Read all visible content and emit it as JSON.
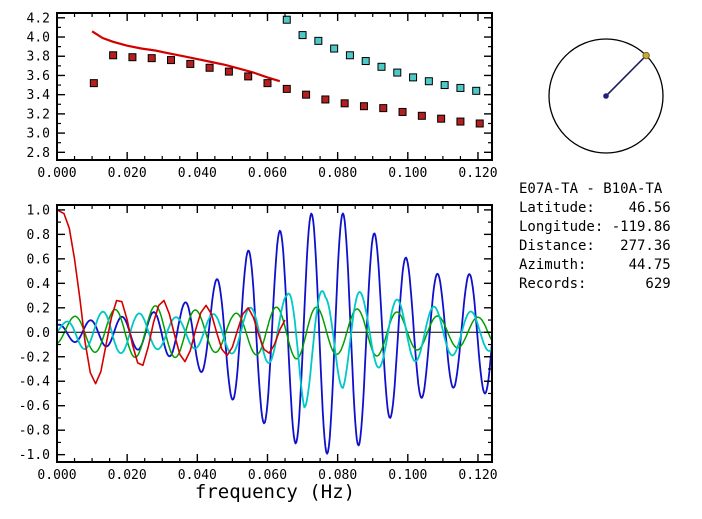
{
  "window": {
    "background": "#ffffff"
  },
  "colors": {
    "axis": "#000000",
    "red_line": "#d40000",
    "red_marker": "#b42020",
    "cyan_marker": "#50c8c8",
    "blue_wave": "#1010cc",
    "cyan_wave": "#00c8c8",
    "green_wave": "#00a000",
    "red_wave": "#d40000",
    "dial_line": "#202060",
    "dial_center": "#202080",
    "dial_marker": "#c8a83c"
  },
  "station_info": {
    "lines": [
      "E07A-TA - B10A-TA",
      "Latitude:    46.56",
      "Longitude: -119.86",
      "Distance:   277.36",
      "Azimuth:     44.75",
      "Records:       629"
    ]
  },
  "dial": {
    "azimuth_deg": 44.75
  },
  "chart_data": [
    {
      "type": "scatter",
      "title": "",
      "xlabel": "",
      "ylabel": "",
      "xlim": [
        0,
        0.124
      ],
      "ylim": [
        2.72,
        4.25
      ],
      "minor_x": 0.005,
      "minor_y": 0.1,
      "xticks": [
        {
          "v": 0.0,
          "label": "0.000"
        },
        {
          "v": 0.02,
          "label": "0.020"
        },
        {
          "v": 0.04,
          "label": "0.040"
        },
        {
          "v": 0.06,
          "label": "0.060"
        },
        {
          "v": 0.08,
          "label": "0.080"
        },
        {
          "v": 0.1,
          "label": "0.100"
        },
        {
          "v": 0.12,
          "label": "0.120"
        }
      ],
      "yticks": [
        {
          "v": 2.8,
          "label": "2.8"
        },
        {
          "v": 3.0,
          "label": "3.0"
        },
        {
          "v": 3.2,
          "label": "3.2"
        },
        {
          "v": 3.4,
          "label": "3.4"
        },
        {
          "v": 3.6,
          "label": "3.6"
        },
        {
          "v": 3.8,
          "label": "3.8"
        },
        {
          "v": 4.0,
          "label": "4.0"
        },
        {
          "v": 4.2,
          "label": "4.2"
        }
      ],
      "series": [
        {
          "name": "red-dispersion-line",
          "type": "line",
          "color": "#d40000",
          "width": 2.2,
          "points": [
            [
              0.01,
              4.06
            ],
            [
              0.013,
              3.99
            ],
            [
              0.016,
              3.95
            ],
            [
              0.02,
              3.91
            ],
            [
              0.024,
              3.88
            ],
            [
              0.028,
              3.86
            ],
            [
              0.032,
              3.83
            ],
            [
              0.036,
              3.8
            ],
            [
              0.04,
              3.77
            ],
            [
              0.044,
              3.74
            ],
            [
              0.048,
              3.71
            ],
            [
              0.052,
              3.67
            ],
            [
              0.056,
              3.63
            ],
            [
              0.06,
              3.58
            ],
            [
              0.0635,
              3.54
            ]
          ]
        },
        {
          "name": "red-dispersion-points",
          "type": "scatter",
          "marker": "square",
          "color": "#b42020",
          "points": [
            [
              0.0105,
              3.52
            ],
            [
              0.016,
              3.81
            ],
            [
              0.0215,
              3.79
            ],
            [
              0.027,
              3.78
            ],
            [
              0.0325,
              3.76
            ],
            [
              0.038,
              3.72
            ],
            [
              0.0435,
              3.68
            ],
            [
              0.049,
              3.64
            ],
            [
              0.0545,
              3.59
            ],
            [
              0.06,
              3.52
            ],
            [
              0.0655,
              3.46
            ],
            [
              0.071,
              3.4
            ],
            [
              0.0765,
              3.35
            ],
            [
              0.082,
              3.31
            ],
            [
              0.0875,
              3.28
            ],
            [
              0.093,
              3.26
            ],
            [
              0.0985,
              3.22
            ],
            [
              0.104,
              3.18
            ],
            [
              0.1095,
              3.15
            ],
            [
              0.115,
              3.12
            ],
            [
              0.1205,
              3.1
            ]
          ]
        },
        {
          "name": "cyan-dispersion-points",
          "type": "scatter",
          "marker": "square",
          "color": "#50c8c8",
          "points": [
            [
              0.0655,
              4.18
            ],
            [
              0.07,
              4.02
            ],
            [
              0.0745,
              3.96
            ],
            [
              0.079,
              3.88
            ],
            [
              0.0835,
              3.81
            ],
            [
              0.088,
              3.75
            ],
            [
              0.0925,
              3.69
            ],
            [
              0.097,
              3.63
            ],
            [
              0.1015,
              3.58
            ],
            [
              0.106,
              3.54
            ],
            [
              0.1105,
              3.5
            ],
            [
              0.115,
              3.47
            ],
            [
              0.1195,
              3.44
            ]
          ]
        }
      ]
    },
    {
      "type": "line",
      "title": "",
      "xlabel": "frequency (Hz)",
      "ylabel": "",
      "xlim": [
        0,
        0.124
      ],
      "ylim": [
        -1.06,
        1.04
      ],
      "zero_line": true,
      "minor_x": 0.005,
      "minor_y": 0.1,
      "xticks": [
        {
          "v": 0.0,
          "label": "0.000"
        },
        {
          "v": 0.02,
          "label": "0.020"
        },
        {
          "v": 0.04,
          "label": "0.040"
        },
        {
          "v": 0.06,
          "label": "0.060"
        },
        {
          "v": 0.08,
          "label": "0.080"
        },
        {
          "v": 0.1,
          "label": "0.100"
        },
        {
          "v": 0.12,
          "label": "0.120"
        }
      ],
      "yticks": [
        {
          "v": -1.0,
          "label": "-1.0"
        },
        {
          "v": -0.8,
          "label": "-0.8"
        },
        {
          "v": -0.6,
          "label": "-0.6"
        },
        {
          "v": -0.4,
          "label": "-0.4"
        },
        {
          "v": -0.2,
          "label": "-0.2"
        },
        {
          "v": 0.0,
          "label": "0.0"
        },
        {
          "v": 0.2,
          "label": "0.2"
        },
        {
          "v": 0.4,
          "label": "0.4"
        },
        {
          "v": 0.6,
          "label": "0.6"
        },
        {
          "v": 0.8,
          "label": "0.8"
        },
        {
          "v": 1.0,
          "label": "1.0"
        }
      ],
      "series": [
        {
          "name": "blue-waveform",
          "type": "line",
          "color": "#1010cc",
          "width": 1.8,
          "synth": {
            "period": 0.009,
            "peak_x": 0.0545,
            "x_start": 0,
            "x_end": 0.124,
            "envelope": [
              [
                0,
                0.06
              ],
              [
                0.005,
                0.08
              ],
              [
                0.01,
                0.1
              ],
              [
                0.015,
                0.12
              ],
              [
                0.02,
                0.13
              ],
              [
                0.025,
                0.15
              ],
              [
                0.03,
                0.18
              ],
              [
                0.035,
                0.22
              ],
              [
                0.04,
                0.3
              ],
              [
                0.045,
                0.42
              ],
              [
                0.05,
                0.55
              ],
              [
                0.055,
                0.68
              ],
              [
                0.06,
                0.76
              ],
              [
                0.065,
                0.86
              ],
              [
                0.07,
                0.94
              ],
              [
                0.075,
                1.0
              ],
              [
                0.08,
                0.98
              ],
              [
                0.085,
                0.95
              ],
              [
                0.09,
                0.82
              ],
              [
                0.095,
                0.7
              ],
              [
                0.1,
                0.6
              ],
              [
                0.105,
                0.52
              ],
              [
                0.11,
                0.46
              ],
              [
                0.115,
                0.45
              ],
              [
                0.12,
                0.5
              ],
              [
                0.124,
                0.5
              ]
            ]
          }
        },
        {
          "name": "green-waveform",
          "type": "line",
          "color": "#00a000",
          "width": 1.5,
          "synth": {
            "period": 0.0115,
            "peak_x": 0.0165,
            "x_start": 0,
            "x_end": 0.124,
            "envelope": [
              [
                0,
                0.1
              ],
              [
                0.01,
                0.16
              ],
              [
                0.02,
                0.2
              ],
              [
                0.03,
                0.22
              ],
              [
                0.04,
                0.18
              ],
              [
                0.05,
                0.15
              ],
              [
                0.06,
                0.2
              ],
              [
                0.07,
                0.22
              ],
              [
                0.08,
                0.18
              ],
              [
                0.09,
                0.2
              ],
              [
                0.1,
                0.15
              ],
              [
                0.11,
                0.13
              ],
              [
                0.124,
                0.12
              ]
            ]
          }
        },
        {
          "name": "cyan-waveform",
          "type": "line",
          "color": "#00c8c8",
          "width": 1.8,
          "synth": {
            "period": 0.0105,
            "peak_x": 0.0655,
            "x_start": 0,
            "x_end": 0.124,
            "envelope": [
              [
                0,
                0.05
              ],
              [
                0.005,
                0.12
              ],
              [
                0.015,
                0.18
              ],
              [
                0.025,
                0.15
              ],
              [
                0.035,
                0.12
              ],
              [
                0.045,
                0.15
              ],
              [
                0.055,
                0.2
              ],
              [
                0.0655,
                0.3
              ],
              [
                0.0705,
                0.62
              ],
              [
                0.0765,
                0.3
              ],
              [
                0.0815,
                0.46
              ],
              [
                0.0875,
                0.3
              ],
              [
                0.095,
                0.28
              ],
              [
                0.105,
                0.22
              ],
              [
                0.115,
                0.18
              ],
              [
                0.124,
                0.15
              ]
            ]
          }
        },
        {
          "name": "red-waveform",
          "type": "line",
          "color": "#d40000",
          "width": 1.6,
          "points": [
            [
              0,
              1.0
            ],
            [
              0.002,
              0.97
            ],
            [
              0.0035,
              0.85
            ],
            [
              0.005,
              0.6
            ],
            [
              0.0065,
              0.28
            ],
            [
              0.008,
              -0.08
            ],
            [
              0.0095,
              -0.33
            ],
            [
              0.011,
              -0.42
            ],
            [
              0.0125,
              -0.32
            ],
            [
              0.014,
              -0.1
            ],
            [
              0.0155,
              0.12
            ],
            [
              0.017,
              0.26
            ],
            [
              0.0185,
              0.25
            ],
            [
              0.02,
              0.1
            ],
            [
              0.0215,
              -0.1
            ],
            [
              0.023,
              -0.25
            ],
            [
              0.0245,
              -0.27
            ],
            [
              0.026,
              -0.12
            ],
            [
              0.0275,
              0.08
            ],
            [
              0.029,
              0.22
            ],
            [
              0.0305,
              0.26
            ],
            [
              0.032,
              0.15
            ],
            [
              0.0335,
              -0.02
            ],
            [
              0.035,
              -0.18
            ],
            [
              0.0365,
              -0.24
            ],
            [
              0.038,
              -0.15
            ],
            [
              0.0395,
              0.02
            ],
            [
              0.041,
              0.16
            ],
            [
              0.0425,
              0.22
            ],
            [
              0.044,
              0.15
            ],
            [
              0.0455,
              0
            ],
            [
              0.047,
              -0.14
            ],
            [
              0.0485,
              -0.19
            ],
            [
              0.05,
              -0.12
            ],
            [
              0.0515,
              0.02
            ],
            [
              0.053,
              0.15
            ],
            [
              0.0545,
              0.2
            ],
            [
              0.056,
              0.12
            ],
            [
              0.0575,
              -0.02
            ],
            [
              0.059,
              -0.14
            ],
            [
              0.0605,
              -0.17
            ],
            [
              0.062,
              -0.1
            ],
            [
              0.0635,
              0.02
            ],
            [
              0.065,
              0.1
            ]
          ]
        }
      ]
    }
  ]
}
